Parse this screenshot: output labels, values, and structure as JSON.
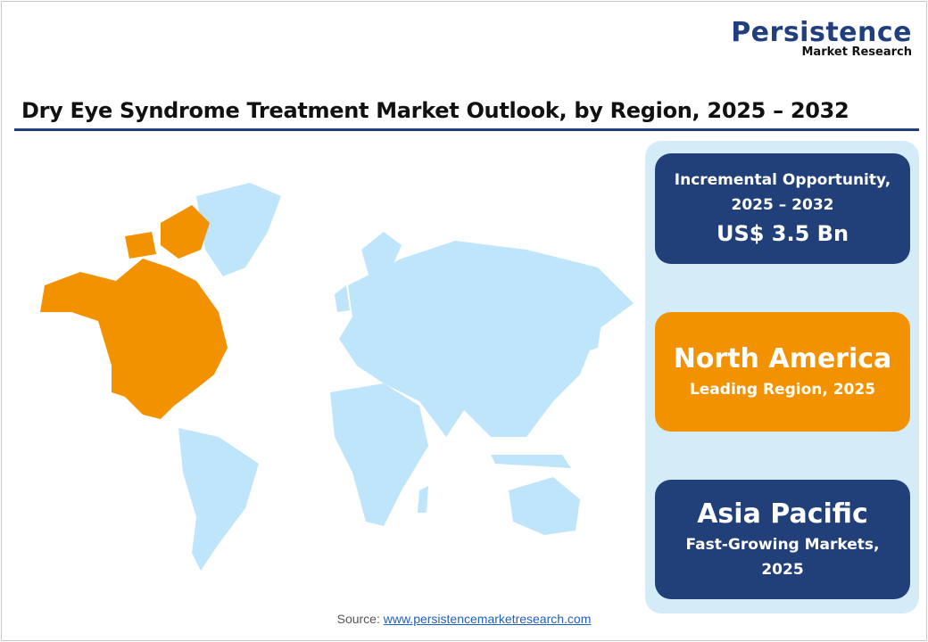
{
  "logo": {
    "main": "Persistence",
    "sub": "Market Research"
  },
  "title": "Dry Eye Syndrome Treatment Market Outlook, by Region, 2025 – 2032",
  "colors": {
    "navy": "#213f78",
    "orange": "#f39200",
    "map": "#bfe5fa",
    "highlight": "#f39200",
    "panel": "#d4ecf8"
  },
  "map": {
    "highlighted_region": "North America"
  },
  "cards": [
    {
      "line1": "Incremental Opportunity,",
      "line2": "2025 – 2032",
      "value": "US$ 3.5 Bn"
    },
    {
      "heading": "North America",
      "sub": "Leading Region, 2025"
    },
    {
      "heading": "Asia Pacific",
      "sub1": "Fast-Growing Markets,",
      "sub2": "2025"
    }
  ],
  "source": {
    "label": "Source:",
    "link": "www.persistencemarketresearch.com"
  }
}
